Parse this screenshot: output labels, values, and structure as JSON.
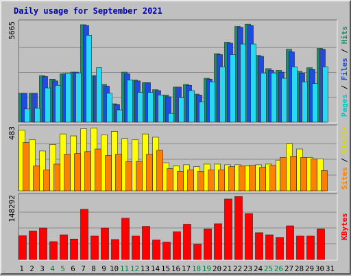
{
  "chart_data": {
    "type": "bar",
    "title": "Daily usage for September 2021",
    "categories": [
      "1",
      "2",
      "3",
      "4",
      "5",
      "6",
      "7",
      "8",
      "9",
      "10",
      "11",
      "12",
      "13",
      "14",
      "15",
      "16",
      "17",
      "18",
      "19",
      "20",
      "21",
      "22",
      "23",
      "24",
      "25",
      "26",
      "27",
      "28",
      "29",
      "30",
      "31"
    ],
    "weekend_days": [
      "4",
      "5",
      "11",
      "12",
      "18",
      "19",
      "25",
      "26"
    ],
    "panels": {
      "pages_files_hits": {
        "ymax_label": "5665",
        "ymax": 5665,
        "series": [
          {
            "name": "Hits",
            "color": "#1e8c6a",
            "values": [
              1650,
              1650,
              2650,
              2450,
              2750,
              2850,
              5550,
              2650,
              2150,
              1050,
              2850,
              2400,
              2250,
              1850,
              1550,
              2000,
              2150,
              1600,
              2500,
              3900,
              4550,
              5450,
              5580,
              3800,
              3050,
              2950,
              4150,
              2900,
              3100,
              4200,
              0
            ]
          },
          {
            "name": "Files",
            "color": "#1f4be0",
            "values": [
              1650,
              1650,
              2600,
              2350,
              2750,
              2850,
              5500,
              2650,
              2050,
              1000,
              2750,
              2350,
              2250,
              1800,
              1450,
              2000,
              2100,
              1550,
              2450,
              3850,
              4500,
              5400,
              5500,
              3750,
              2950,
              2850,
              4000,
              2800,
              3000,
              4150,
              0
            ]
          },
          {
            "name": "Pages",
            "color": "#27d9f2",
            "values": [
              750,
              800,
              1950,
              2100,
              2800,
              2800,
              4950,
              3100,
              1650,
              700,
              2400,
              1700,
              1700,
              1550,
              500,
              1400,
              1800,
              1150,
              2300,
              3150,
              3850,
              4450,
              4450,
              2800,
              2800,
              2500,
              3150,
              2300,
              2200,
              3150,
              0
            ]
          }
        ]
      },
      "sites_visits": {
        "ymax_label": "483",
        "ymax": 483,
        "series": [
          {
            "name": "Visits",
            "color": "#ffff00",
            "values": [
              465,
              390,
              305,
              355,
              435,
              420,
              475,
              480,
              430,
              455,
              400,
              390,
              435,
              410,
              215,
              190,
              200,
              185,
              205,
              205,
              200,
              200,
              190,
              200,
              205,
              235,
              360,
              320,
              255,
              245,
              0
            ]
          },
          {
            "name": "Sites",
            "color": "#ff8000",
            "values": [
              370,
              190,
              160,
              205,
              280,
              285,
              300,
              320,
              270,
              280,
              225,
              225,
              280,
              310,
              170,
              150,
              160,
              150,
              160,
              160,
              185,
              190,
              195,
              180,
              195,
              255,
              265,
              255,
              245,
              155,
              0
            ]
          }
        ]
      },
      "kbytes": {
        "ymax_label": "148292",
        "ymax": 148292,
        "series": [
          {
            "name": "KBytes",
            "color": "#ff0000",
            "values": [
              56000,
              67000,
              74000,
              42000,
              58000,
              48000,
              118000,
              55000,
              74000,
              47000,
              97000,
              55000,
              78000,
              46000,
              41000,
              65000,
              83000,
              36000,
              72000,
              84000,
              142000,
              148000,
              108000,
              63000,
              58000,
              52000,
              79000,
              55000,
              55000,
              72000,
              0
            ]
          }
        ]
      }
    },
    "right_labels": {
      "top": [
        {
          "text": "Pages",
          "color": "#00c8c8"
        },
        {
          "text": " / ",
          "color": "#000000"
        },
        {
          "text": "Files",
          "color": "#1f4be0"
        },
        {
          "text": " / ",
          "color": "#000000"
        },
        {
          "text": "Hits",
          "color": "#1e8c6a"
        }
      ],
      "mid": [
        {
          "text": "Sites",
          "color": "#ff8000"
        },
        {
          "text": " / ",
          "color": "#000000"
        },
        {
          "text": "Visits",
          "color": "#d8d800"
        }
      ],
      "bottom": [
        {
          "text": "KBytes",
          "color": "#ff0000"
        }
      ]
    },
    "colors": {
      "weekday_label": "#000000",
      "weekend_label": "#008040",
      "panel_bg": "#c0c0c0",
      "grid": "#8a8a8a"
    }
  }
}
